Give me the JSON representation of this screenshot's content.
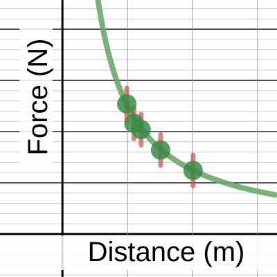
{
  "chart_data": {
    "type": "scatter",
    "x_label": "Distance (m)",
    "y_label": "Force (N)",
    "x": [
      0.99,
      1.1,
      1.21,
      1.51,
      2.01
    ],
    "values": [
      2.54,
      2.16,
      2.04,
      1.64,
      1.24
    ],
    "errors": [
      0.31,
      0.3,
      0.3,
      0.3,
      0.3
    ],
    "color": "#388c46",
    "error_color": "#c74440",
    "curve": {
      "k": 2.5,
      "color": "#6aa96a"
    },
    "xlim": [
      -0.96,
      3.3
    ],
    "ylim": [
      -0.84,
      4.57
    ],
    "xticks": [
      0,
      1,
      2,
      3
    ],
    "yticks": [
      0,
      1,
      2,
      3,
      4
    ],
    "minor_y_divisions": 5,
    "grid": true
  }
}
